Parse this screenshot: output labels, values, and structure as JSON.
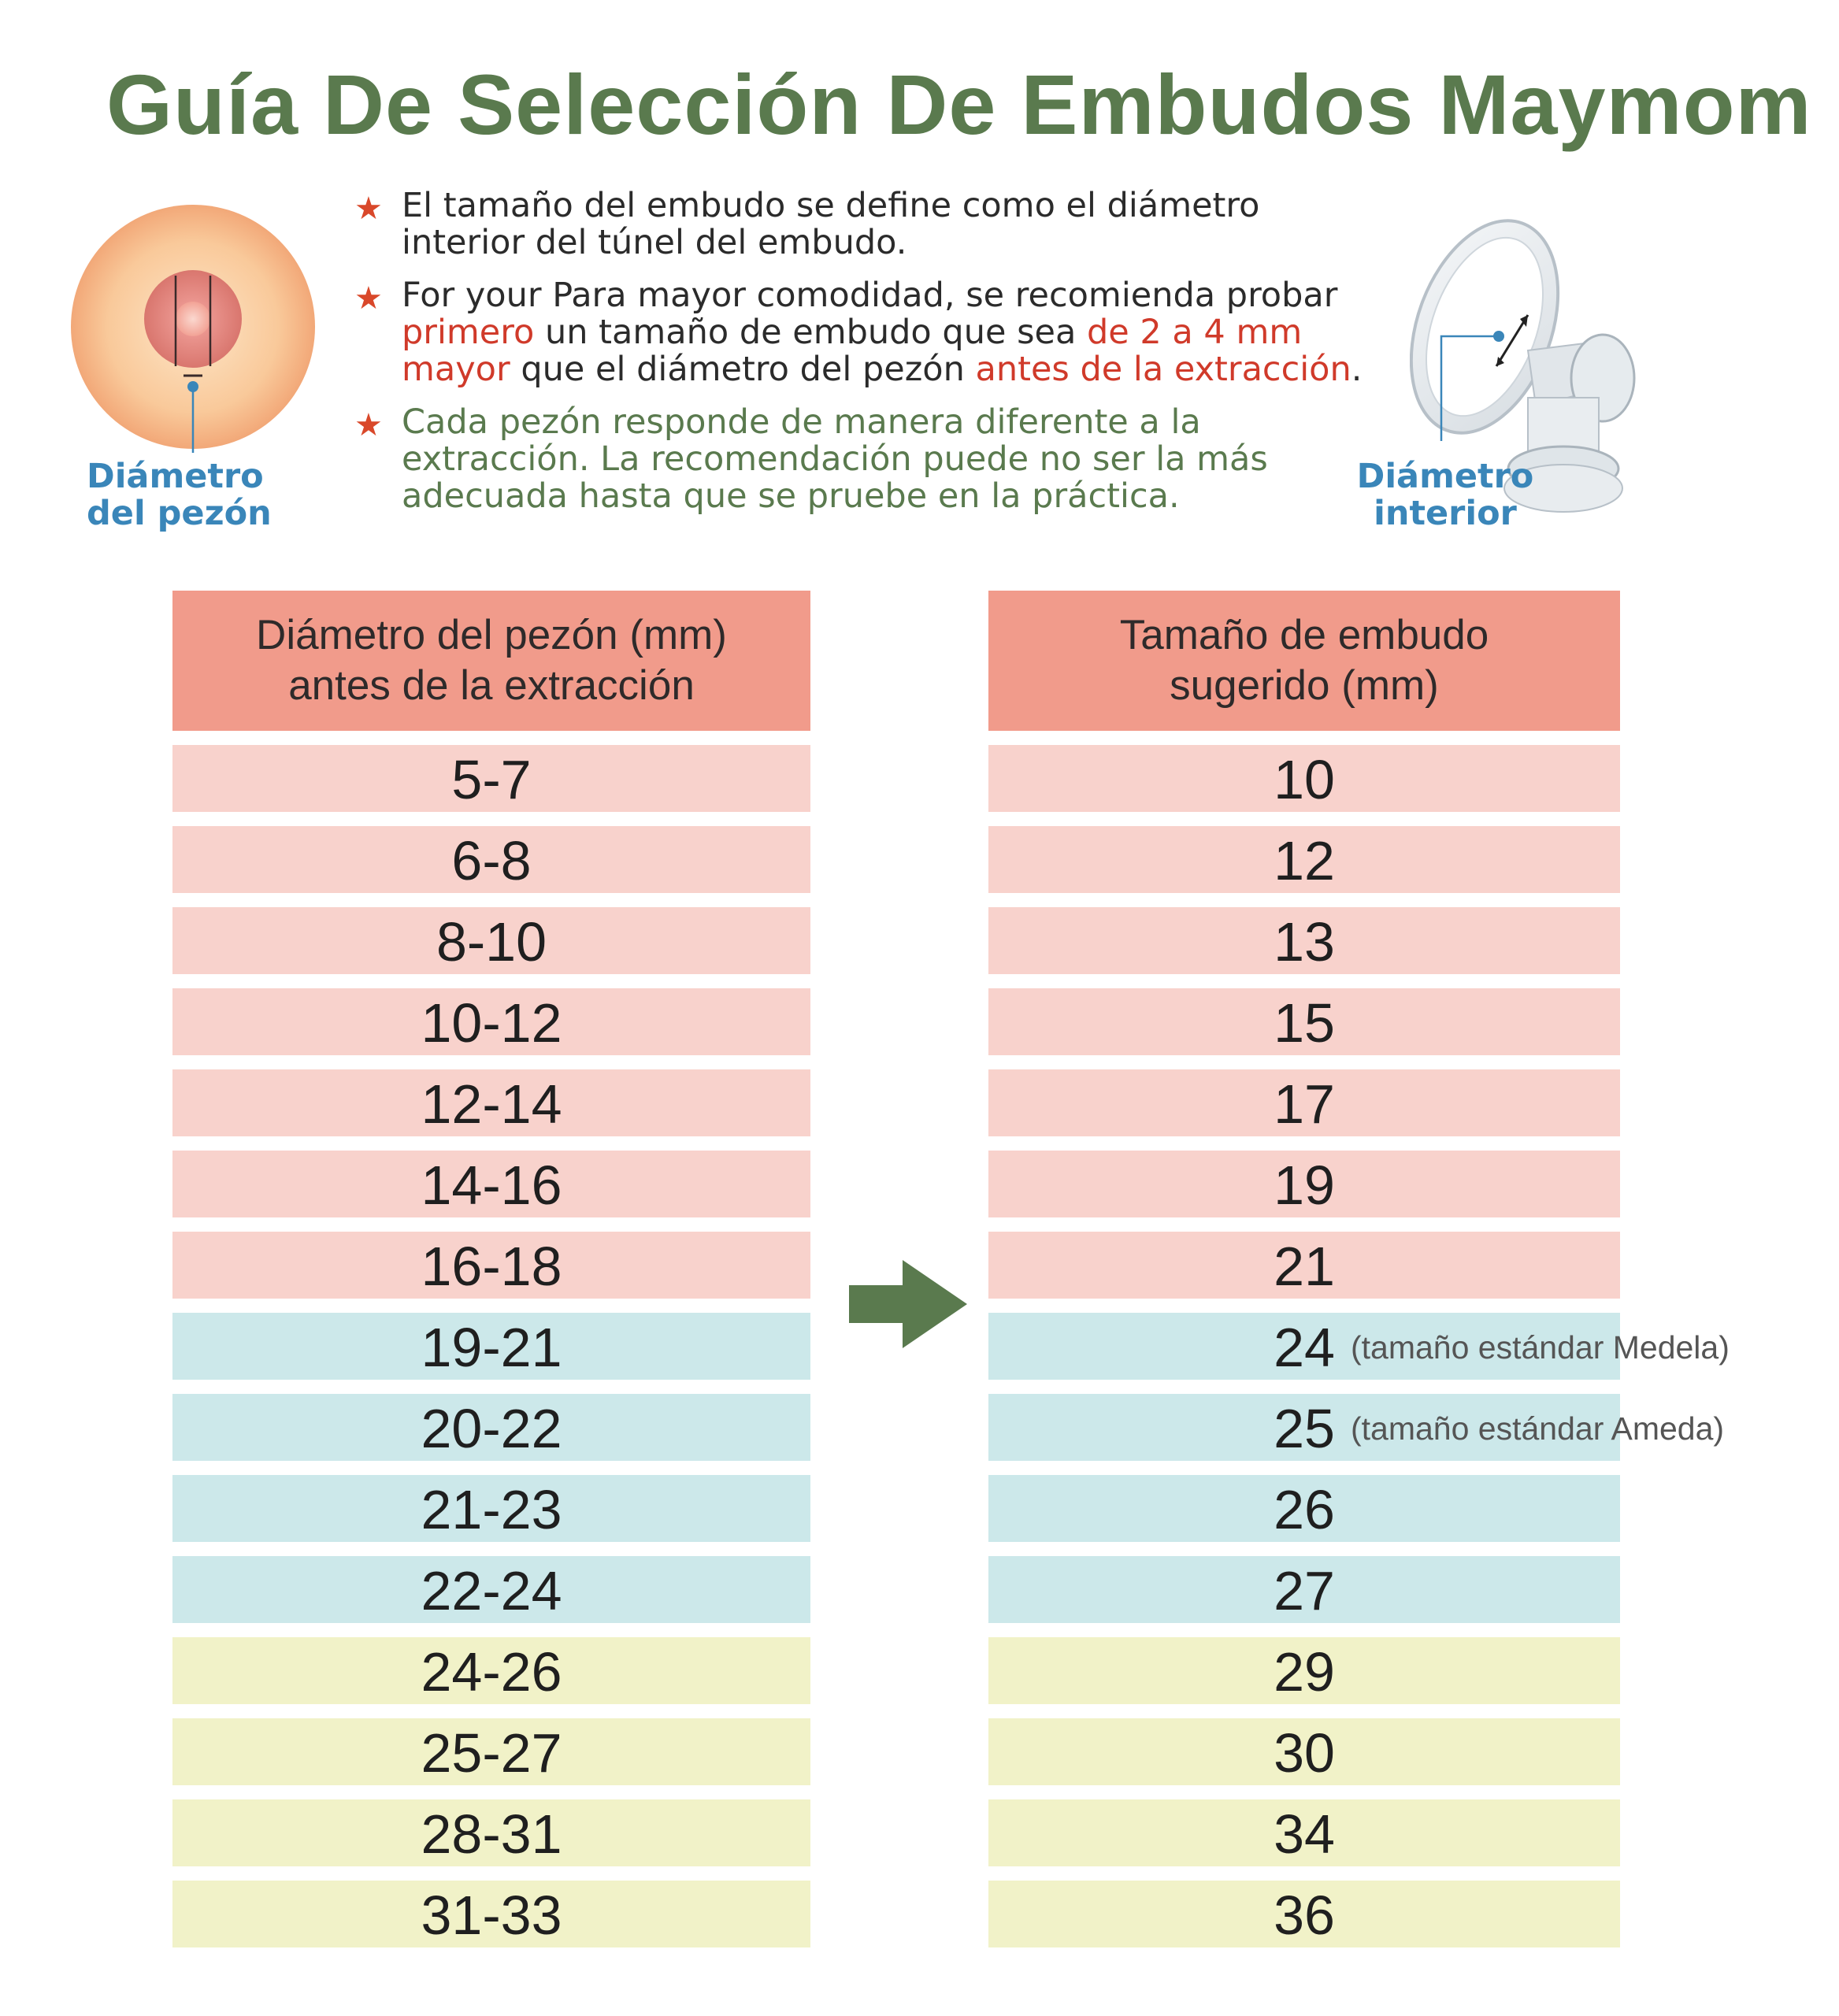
{
  "title": "Guía De Selección De Embudos Maymom",
  "labels": {
    "nipple_diameter": [
      "Diámetro",
      "del pezón"
    ],
    "inner_diameter": [
      "Diámetro",
      "interior"
    ]
  },
  "notes": [
    {
      "parts": [
        {
          "text": "El tamaño del embudo se define como el diámetro interior del túnel del embudo.",
          "color": "default"
        }
      ]
    },
    {
      "parts": [
        {
          "text": "For your Para mayor comodidad, se recomienda probar ",
          "color": "default"
        },
        {
          "text": "primero",
          "color": "red"
        },
        {
          "text": " un tamaño de embudo que sea ",
          "color": "default"
        },
        {
          "text": "de 2 a 4 mm mayor",
          "color": "red"
        },
        {
          "text": " que el diámetro del pezón ",
          "color": "default"
        },
        {
          "text": "antes de la extracción",
          "color": "red"
        },
        {
          "text": ".",
          "color": "default"
        }
      ]
    },
    {
      "parts": [
        {
          "text": "Cada pezón responde de manera diferente a la extracción. La recomendación puede no ser la más adecuada hasta que se pruebe en la práctica.",
          "color": "green"
        }
      ]
    }
  ],
  "table_left": {
    "header": [
      "Diámetro del pezón (mm)",
      "antes de la extracción"
    ],
    "rows": [
      "5-7",
      "6-8",
      "8-10",
      "10-12",
      "12-14",
      "14-16",
      "16-18",
      "19-21",
      "20-22",
      "21-23",
      "22-24",
      "24-26",
      "25-27",
      "28-31",
      "31-33"
    ]
  },
  "table_right": {
    "header": [
      "Tamaño de embudo",
      "sugerido (mm)"
    ],
    "rows": [
      "10",
      "12",
      "13",
      "15",
      "17",
      "19",
      "21",
      "24",
      "25",
      "26",
      "27",
      "29",
      "30",
      "34",
      "36"
    ],
    "annotations": {
      "7": "(tamaño estándar Medela)",
      "8": "(tamaño estándar Ameda)"
    }
  },
  "row_groups": [
    "pink",
    "pink",
    "pink",
    "pink",
    "pink",
    "pink",
    "pink",
    "blue",
    "blue",
    "blue",
    "blue",
    "yellow",
    "yellow",
    "yellow",
    "yellow"
  ],
  "colors": {
    "title": "#5a7a4e",
    "header": "#f19b8b",
    "pink": "#f8d2cc",
    "blue": "#cce8ea",
    "yellow": "#f1f2c8",
    "accent_red": "#d03a2a",
    "label_blue": "#3a86b9",
    "arrow": "#5a7a4e"
  },
  "icons": [
    "nipple-diagram-icon",
    "breast-funnel-icon",
    "star-icon",
    "arrow-right-icon"
  ]
}
